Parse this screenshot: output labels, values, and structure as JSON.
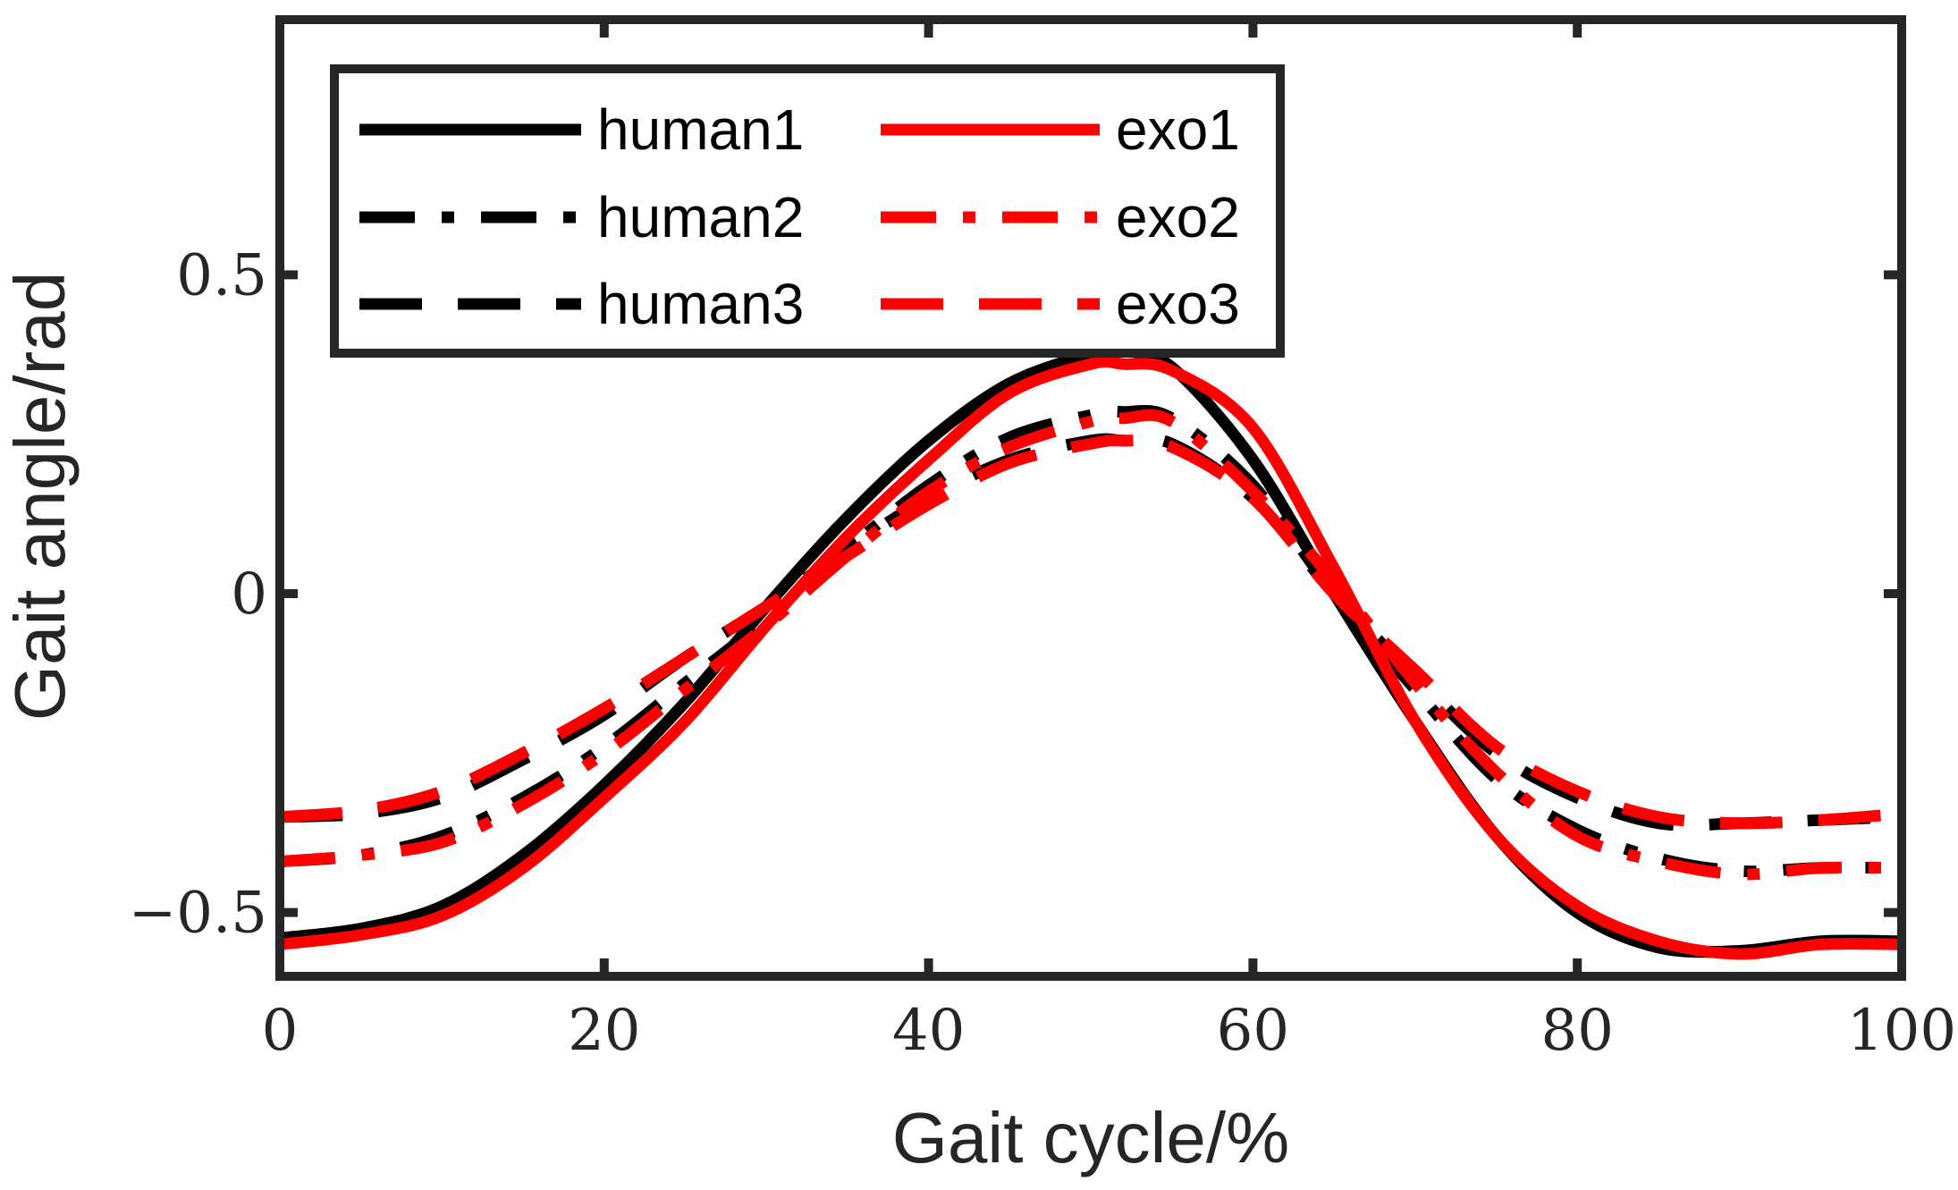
{
  "chart_data": {
    "type": "line",
    "xlabel": "Gait cycle/%",
    "ylabel": "Gait angle/rad",
    "xlim": [
      0,
      100
    ],
    "ylim": [
      -0.6,
      0.9
    ],
    "xticks": [
      0,
      20,
      40,
      60,
      80,
      100
    ],
    "xtick_labels": [
      "0",
      "20",
      "40",
      "60",
      "80",
      "100"
    ],
    "yticks": [
      -0.5,
      0,
      0.5
    ],
    "ytick_labels": [
      "−0.5",
      "0",
      "0.5"
    ],
    "grid": false,
    "legend_position": "top-left",
    "colors": {
      "human": "#000000",
      "exo": "#ff0000",
      "axis": "#262626"
    },
    "x": [
      0,
      5,
      10,
      15,
      20,
      25,
      30,
      35,
      40,
      45,
      50,
      52,
      55,
      60,
      65,
      70,
      75,
      80,
      85,
      90,
      95,
      100
    ],
    "series": [
      {
        "name": "human1",
        "color": "#000000",
        "dash": "solid",
        "values": [
          -0.54,
          -0.525,
          -0.49,
          -0.41,
          -0.3,
          -0.17,
          -0.02,
          0.12,
          0.24,
          0.33,
          0.375,
          0.38,
          0.355,
          0.21,
          0.0,
          -0.2,
          -0.38,
          -0.5,
          -0.555,
          -0.56,
          -0.545,
          -0.545
        ]
      },
      {
        "name": "human2",
        "color": "#000000",
        "dash": "dashdot",
        "values": [
          -0.42,
          -0.41,
          -0.38,
          -0.32,
          -0.24,
          -0.14,
          -0.04,
          0.07,
          0.17,
          0.245,
          0.28,
          0.285,
          0.275,
          0.17,
          0.0,
          -0.15,
          -0.29,
          -0.37,
          -0.415,
          -0.435,
          -0.43,
          -0.43
        ]
      },
      {
        "name": "human3",
        "color": "#000000",
        "dash": "dashed",
        "values": [
          -0.35,
          -0.345,
          -0.32,
          -0.26,
          -0.19,
          -0.1,
          -0.02,
          0.07,
          0.15,
          0.21,
          0.24,
          0.24,
          0.235,
          0.15,
          0.0,
          -0.13,
          -0.25,
          -0.32,
          -0.36,
          -0.36,
          -0.355,
          -0.35
        ]
      },
      {
        "name": "exo1",
        "color": "#ff0000",
        "dash": "solid",
        "values": [
          -0.55,
          -0.535,
          -0.505,
          -0.43,
          -0.32,
          -0.2,
          -0.05,
          0.09,
          0.21,
          0.315,
          0.36,
          0.36,
          0.35,
          0.26,
          0.04,
          -0.2,
          -0.38,
          -0.49,
          -0.545,
          -0.565,
          -0.55,
          -0.55
        ]
      },
      {
        "name": "exo2",
        "color": "#ff0000",
        "dash": "dashdot",
        "values": [
          -0.42,
          -0.41,
          -0.39,
          -0.33,
          -0.25,
          -0.15,
          -0.05,
          0.06,
          0.16,
          0.23,
          0.27,
          0.275,
          0.27,
          0.16,
          0.02,
          -0.14,
          -0.28,
          -0.38,
          -0.42,
          -0.44,
          -0.43,
          -0.43
        ]
      },
      {
        "name": "exo3",
        "color": "#ff0000",
        "dash": "dashed",
        "values": [
          -0.35,
          -0.34,
          -0.31,
          -0.25,
          -0.18,
          -0.1,
          -0.02,
          0.06,
          0.14,
          0.205,
          0.235,
          0.24,
          0.23,
          0.15,
          0.0,
          -0.12,
          -0.24,
          -0.31,
          -0.35,
          -0.36,
          -0.355,
          -0.345
        ]
      }
    ]
  }
}
